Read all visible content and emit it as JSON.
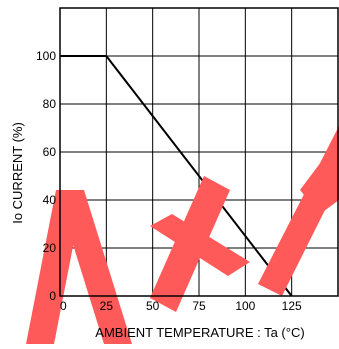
{
  "chart_data": {
    "type": "line",
    "title": "",
    "xlabel": "AMBIENT  TEMPERATURE : Ta (°C)",
    "ylabel": "Io CURRENT (%)",
    "xlim": [
      0,
      150
    ],
    "ylim": [
      0,
      120
    ],
    "x_ticks": [
      0,
      25,
      50,
      75,
      100,
      125
    ],
    "y_ticks": [
      0,
      20,
      40,
      60,
      80,
      100
    ],
    "x_tick_labels": [
      "0",
      "25",
      "50",
      "75",
      "100",
      "125"
    ],
    "y_tick_labels": [
      "0",
      "20",
      "40",
      "60",
      "80",
      "100"
    ],
    "grid": true,
    "series": [
      {
        "x": [
          0,
          25,
          125
        ],
        "y": [
          100,
          100,
          0
        ]
      }
    ],
    "colors": {
      "line": "#000000",
      "grid": "#000000",
      "watermark": "#ff5a5a"
    }
  }
}
